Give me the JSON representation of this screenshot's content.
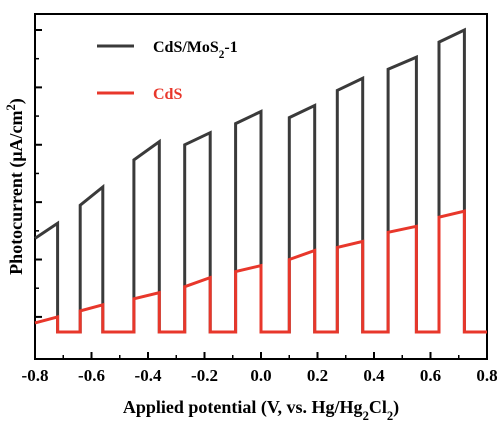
{
  "chart_data": {
    "type": "line",
    "title": "",
    "xlabel": "Applied potential (V, vs. Hg/Hg2Cl2)",
    "xlabel_parts": [
      {
        "text": "Applied potential (V, vs. Hg/Hg",
        "sub": false
      },
      {
        "text": "2",
        "sub": true
      },
      {
        "text": "Cl",
        "sub": false
      },
      {
        "text": "2",
        "sub": true
      },
      {
        "text": ")",
        "sub": false
      }
    ],
    "ylabel": "Photocurrent (μA/cm²)",
    "ylabel_parts": [
      {
        "text": "Photocurrent (μA/cm",
        "sup": false
      },
      {
        "text": "2",
        "sup": true
      },
      {
        "text": ")",
        "sup": false
      }
    ],
    "xlim": [
      -0.8,
      0.8
    ],
    "ylim": [
      0,
      1
    ],
    "y_ticks_labeled": false,
    "x_ticks": [
      "-0.8",
      "-0.6",
      "-0.4",
      "-0.2",
      "0.0",
      "0.2",
      "0.4",
      "0.6",
      "0.8"
    ],
    "x_tick_values": [
      -0.8,
      -0.6,
      -0.4,
      -0.2,
      0.0,
      0.2,
      0.4,
      0.6,
      0.8
    ],
    "grid": false,
    "legend_position": "top-left",
    "series": [
      {
        "name": "CdS/MoS2-1",
        "name_parts": [
          {
            "text": "CdS/MoS",
            "sub": false
          },
          {
            "text": "2",
            "sub": true
          },
          {
            "text": "-1",
            "sub": false
          }
        ],
        "color": "#3a3a3a",
        "baseline": 0.0,
        "x": [
          -0.8,
          -0.72,
          -0.72,
          -0.64,
          -0.64,
          -0.56,
          -0.56,
          -0.45,
          -0.45,
          -0.36,
          -0.36,
          -0.27,
          -0.27,
          -0.18,
          -0.18,
          -0.09,
          -0.09,
          0.0,
          0.0,
          0.1,
          0.1,
          0.19,
          0.19,
          0.27,
          0.27,
          0.36,
          0.36,
          0.45,
          0.45,
          0.55,
          0.55,
          0.63,
          0.63,
          0.72,
          0.72,
          0.8
        ],
        "y": [
          0.31,
          0.36,
          0.0,
          0.0,
          0.42,
          0.48,
          0.0,
          0.0,
          0.57,
          0.63,
          0.0,
          0.0,
          0.62,
          0.66,
          0.0,
          0.0,
          0.69,
          0.73,
          0.0,
          0.0,
          0.71,
          0.75,
          0.0,
          0.0,
          0.8,
          0.84,
          0.0,
          0.0,
          0.87,
          0.91,
          0.0,
          0.0,
          0.96,
          1.0,
          0.0,
          0.0
        ]
      },
      {
        "name": "CdS",
        "color": "#e8372b",
        "baseline": 0.0,
        "x": [
          -0.8,
          -0.72,
          -0.72,
          -0.64,
          -0.64,
          -0.56,
          -0.56,
          -0.45,
          -0.45,
          -0.36,
          -0.36,
          -0.27,
          -0.27,
          -0.18,
          -0.18,
          -0.09,
          -0.09,
          0.0,
          0.0,
          0.1,
          0.1,
          0.19,
          0.19,
          0.27,
          0.27,
          0.36,
          0.36,
          0.45,
          0.45,
          0.55,
          0.55,
          0.63,
          0.63,
          0.72,
          0.72,
          0.8
        ],
        "y": [
          0.03,
          0.05,
          0.0,
          0.0,
          0.07,
          0.09,
          0.0,
          0.0,
          0.11,
          0.13,
          0.0,
          0.0,
          0.15,
          0.18,
          0.0,
          0.0,
          0.2,
          0.22,
          0.0,
          0.0,
          0.24,
          0.27,
          0.0,
          0.0,
          0.28,
          0.3,
          0.0,
          0.0,
          0.33,
          0.35,
          0.0,
          0.0,
          0.38,
          0.4,
          0.0,
          0.0
        ]
      }
    ]
  }
}
